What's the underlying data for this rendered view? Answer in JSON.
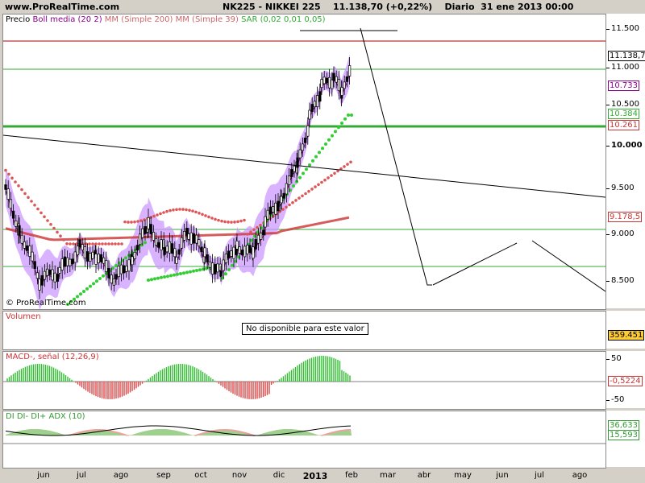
{
  "header": {
    "site": "www.ProRealTime.com",
    "title": "NK225 - NIKKEI 225    11.138,70 (+0,22%)    Diario  31 ene 2013 00:00"
  },
  "price_panel": {
    "legend": [
      {
        "text": "Precio",
        "color": "#000000"
      },
      {
        "text": "Boll media (20 2)",
        "color": "#8b008b"
      },
      {
        "text": "MM (Simple 200)",
        "color": "#cc6666"
      },
      {
        "text": "MM (Simple 39)",
        "color": "#cc6666"
      },
      {
        "text": "SAR (0,02 0,01 0,05)",
        "color": "#33aa33"
      }
    ],
    "copyright": "© ProRealTime.com",
    "scale_ticks": [
      "11.500",
      "11.000",
      "10.500",
      "10.000",
      "9.500",
      "9.000",
      "8.500"
    ],
    "value_labels": [
      {
        "text": "11.138,7",
        "color": "#000000"
      },
      {
        "text": "10.733",
        "color": "#8b008b"
      },
      {
        "text": "10.384",
        "color": "#33aa33"
      },
      {
        "text": "10.261",
        "color": "#cc3333"
      },
      {
        "text": "9.178,5",
        "color": "#cc3333"
      }
    ]
  },
  "volume_panel": {
    "title": "Volumen",
    "message": "No disponible para este valor",
    "value_label": "359.451"
  },
  "macd_panel": {
    "title": "MACD-, señal (12,26,9)",
    "scale_ticks": [
      "50",
      "-50"
    ],
    "value_label": "-0,5224"
  },
  "adx_panel": {
    "title": "DI DI- DI+ ADX (10)",
    "value_labels": [
      "36,633",
      "15,593"
    ]
  },
  "x_axis": [
    "jun",
    "jul",
    "ago",
    "sep",
    "oct",
    "nov",
    "dic",
    "2013",
    "feb",
    "mar",
    "abr",
    "may",
    "jun",
    "jul",
    "ago"
  ],
  "colors": {
    "bollinger_fill": "#cc99ff",
    "sar": "#33cc33",
    "ma": "#cc3333",
    "support_line": "#33aa33",
    "resistance_line": "#aa0000"
  }
}
